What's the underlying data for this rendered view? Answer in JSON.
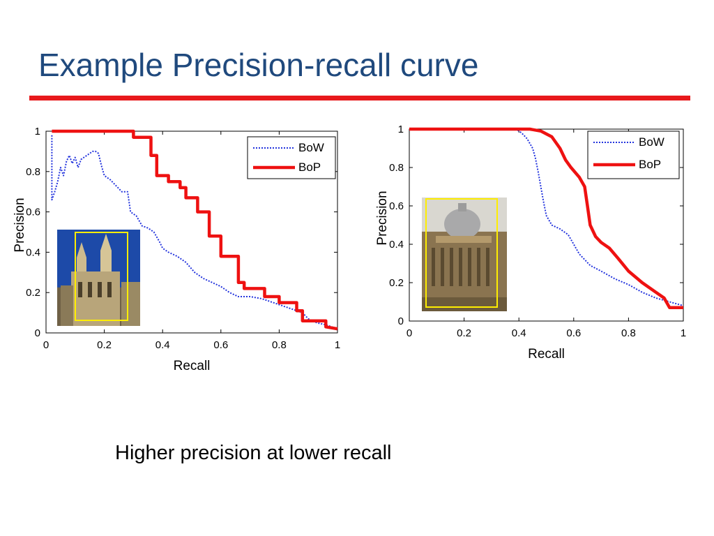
{
  "slide": {
    "title": "Example Precision-recall curve",
    "caption": "Higher precision at lower recall"
  },
  "colors": {
    "title": "#1f497d",
    "rule": "#e8191c",
    "bow": "#2233dd",
    "bop": "#ee1111",
    "thumb_frame": "#ffee00"
  },
  "chart_data": [
    {
      "type": "line",
      "xlabel": "Recall",
      "ylabel": "Precision",
      "xlim": [
        0,
        1
      ],
      "ylim": [
        0,
        1
      ],
      "xticks": [
        "0",
        "0.2",
        "0.4",
        "0.6",
        "0.8",
        "1"
      ],
      "yticks": [
        "0",
        "0.2",
        "0.4",
        "0.6",
        "0.8",
        "1"
      ],
      "grid": false,
      "legend": "top-right",
      "thumbnail": "gothic-building-photo",
      "series": [
        {
          "name": "BoW",
          "style": "dotted",
          "x": [
            0.02,
            0.02,
            0.03,
            0.04,
            0.05,
            0.06,
            0.07,
            0.08,
            0.09,
            0.1,
            0.11,
            0.12,
            0.13,
            0.14,
            0.15,
            0.16,
            0.17,
            0.18,
            0.19,
            0.2,
            0.22,
            0.24,
            0.26,
            0.28,
            0.29,
            0.31,
            0.33,
            0.35,
            0.37,
            0.39,
            0.4,
            0.42,
            0.45,
            0.48,
            0.51,
            0.54,
            0.57,
            0.6,
            0.63,
            0.66,
            0.7,
            0.74,
            0.78,
            0.82,
            0.86,
            0.88,
            0.9,
            0.93,
            0.96,
            1.0
          ],
          "y": [
            0.98,
            0.66,
            0.7,
            0.75,
            0.82,
            0.78,
            0.85,
            0.88,
            0.84,
            0.87,
            0.82,
            0.86,
            0.87,
            0.88,
            0.89,
            0.9,
            0.9,
            0.89,
            0.83,
            0.78,
            0.76,
            0.73,
            0.7,
            0.7,
            0.6,
            0.58,
            0.53,
            0.52,
            0.5,
            0.45,
            0.42,
            0.4,
            0.38,
            0.35,
            0.3,
            0.27,
            0.25,
            0.23,
            0.2,
            0.18,
            0.18,
            0.17,
            0.15,
            0.13,
            0.11,
            0.1,
            0.07,
            0.05,
            0.04,
            0.02
          ]
        },
        {
          "name": "BoP",
          "style": "solid",
          "x": [
            0.02,
            0.3,
            0.3,
            0.36,
            0.36,
            0.38,
            0.38,
            0.42,
            0.42,
            0.46,
            0.46,
            0.48,
            0.48,
            0.52,
            0.52,
            0.56,
            0.56,
            0.6,
            0.6,
            0.66,
            0.66,
            0.68,
            0.68,
            0.75,
            0.75,
            0.8,
            0.8,
            0.86,
            0.86,
            0.88,
            0.88,
            0.96,
            0.96,
            1.0
          ],
          "y": [
            1.0,
            1.0,
            0.97,
            0.97,
            0.88,
            0.88,
            0.78,
            0.78,
            0.75,
            0.75,
            0.72,
            0.72,
            0.67,
            0.67,
            0.6,
            0.6,
            0.48,
            0.48,
            0.38,
            0.38,
            0.25,
            0.25,
            0.22,
            0.22,
            0.18,
            0.18,
            0.15,
            0.15,
            0.11,
            0.11,
            0.06,
            0.06,
            0.03,
            0.02
          ]
        }
      ]
    },
    {
      "type": "line",
      "xlabel": "Recall",
      "ylabel": "Precision",
      "xlim": [
        0,
        1
      ],
      "ylim": [
        0,
        1
      ],
      "xticks": [
        "0",
        "0.2",
        "0.4",
        "0.6",
        "0.8",
        "1"
      ],
      "yticks": [
        "0",
        "0.2",
        "0.4",
        "0.6",
        "0.8",
        "1"
      ],
      "grid": false,
      "legend": "top-right",
      "thumbnail": "domed-building-photo",
      "series": [
        {
          "name": "BoW",
          "style": "dotted",
          "x": [
            0.0,
            0.39,
            0.41,
            0.43,
            0.45,
            0.46,
            0.47,
            0.48,
            0.49,
            0.5,
            0.52,
            0.55,
            0.58,
            0.6,
            0.62,
            0.64,
            0.66,
            0.7,
            0.75,
            0.8,
            0.85,
            0.9,
            0.95,
            1.0
          ],
          "y": [
            1.0,
            1.0,
            0.98,
            0.95,
            0.9,
            0.85,
            0.78,
            0.7,
            0.62,
            0.55,
            0.5,
            0.48,
            0.45,
            0.4,
            0.35,
            0.32,
            0.29,
            0.26,
            0.22,
            0.19,
            0.15,
            0.12,
            0.1,
            0.08
          ]
        },
        {
          "name": "BoP",
          "style": "solid",
          "x": [
            0.0,
            0.44,
            0.48,
            0.52,
            0.55,
            0.57,
            0.59,
            0.62,
            0.64,
            0.65,
            0.66,
            0.68,
            0.7,
            0.73,
            0.76,
            0.8,
            0.85,
            0.9,
            0.93,
            0.95,
            1.0
          ],
          "y": [
            1.0,
            1.0,
            0.99,
            0.96,
            0.9,
            0.84,
            0.8,
            0.75,
            0.7,
            0.6,
            0.5,
            0.44,
            0.41,
            0.38,
            0.33,
            0.26,
            0.2,
            0.15,
            0.12,
            0.07,
            0.07
          ]
        }
      ]
    }
  ]
}
